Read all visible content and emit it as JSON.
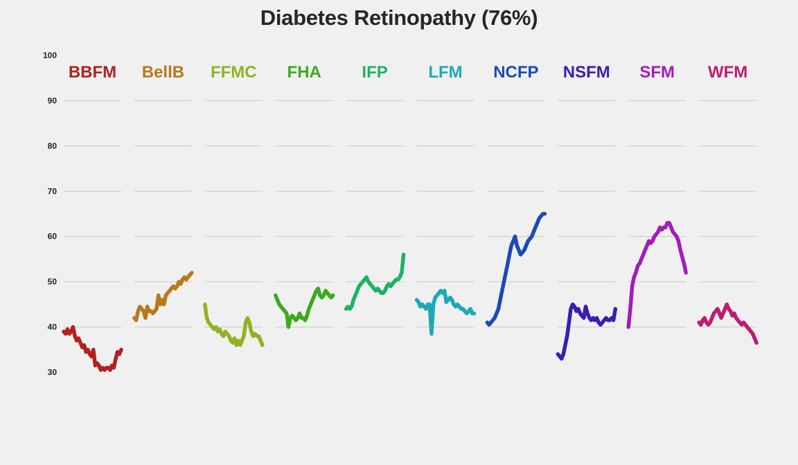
{
  "chart_data": {
    "type": "line",
    "title": "Diabetes Retinopathy (76%)",
    "xlabel": "",
    "ylabel": "",
    "ylim": [
      30,
      100
    ],
    "y_ticks": [
      30,
      40,
      50,
      60,
      70,
      80,
      90,
      100
    ],
    "grid": true,
    "layout": "small-multiples",
    "series": [
      {
        "name": "BBFM",
        "color": "#b3201e",
        "values": [
          39,
          38.5,
          39.5,
          38.5,
          39,
          40,
          38,
          37,
          37.5,
          36.5,
          35.5,
          36,
          34.5,
          35,
          34,
          33.5,
          35,
          31.5,
          32,
          31.5,
          30.5,
          31,
          30.5,
          31,
          31,
          30.5,
          31.5,
          31,
          33,
          34.5,
          34,
          35
        ]
      },
      {
        "name": "BellB",
        "color": "#b8791d",
        "values": [
          42,
          41.5,
          43.5,
          44.5,
          44,
          43.5,
          42,
          44.5,
          43.5,
          43.5,
          43,
          43.5,
          44,
          47,
          45,
          46,
          45,
          47,
          47.5,
          48,
          48.5,
          49,
          48.5,
          49,
          50,
          49.5,
          50.5,
          51,
          50.5,
          51,
          51.5,
          52
        ]
      },
      {
        "name": "FFMC",
        "color": "#91b323",
        "values": [
          45,
          42,
          41,
          40.5,
          40,
          39.5,
          40,
          39,
          39.5,
          38.5,
          38,
          39,
          38.5,
          38,
          37,
          36.5,
          37.5,
          36,
          37,
          36,
          37,
          38,
          41,
          42,
          41,
          39,
          38,
          38.5,
          38,
          38,
          37,
          36
        ]
      },
      {
        "name": "FHA",
        "color": "#3aaa1f",
        "values": [
          47,
          46,
          45,
          44.5,
          44,
          43.5,
          43,
          40,
          42,
          42.5,
          42,
          41.5,
          42,
          43,
          42,
          42,
          41.5,
          42.5,
          44,
          45,
          46,
          47,
          48,
          48.5,
          47,
          46.5,
          47,
          48,
          47.5,
          47,
          46.5,
          47
        ]
      },
      {
        "name": "IFP",
        "color": "#1db362",
        "values": [
          44,
          44.5,
          44,
          44.5,
          46,
          47,
          48,
          49,
          49.5,
          50,
          50.5,
          51,
          50,
          49.5,
          49,
          48.5,
          48,
          48.5,
          48,
          47.5,
          47.5,
          48,
          49,
          49.5,
          49,
          49.5,
          50,
          50.5,
          50.5,
          51,
          52,
          56
        ]
      },
      {
        "name": "LFM",
        "color": "#1ba9b8",
        "values": [
          46,
          45.5,
          44.5,
          45,
          44.5,
          44,
          45,
          45,
          38.5,
          45,
          46.5,
          47,
          47.5,
          48,
          47.5,
          48,
          45.5,
          46,
          46.5,
          46,
          45,
          44.5,
          45,
          44.5,
          44,
          44,
          43.5,
          43,
          43.5,
          44,
          43,
          43
        ]
      },
      {
        "name": "NCFP",
        "color": "#1d4ab4",
        "values": [
          41,
          40.5,
          41,
          41.5,
          42,
          43,
          44,
          46,
          48,
          50,
          52,
          54,
          56,
          58,
          59,
          60,
          58,
          57,
          56,
          56.5,
          57,
          58,
          59,
          59.5,
          60,
          61,
          62,
          63,
          64,
          64.5,
          65,
          65
        ]
      },
      {
        "name": "NSFM",
        "color": "#3a1db3",
        "values": [
          34,
          33.5,
          33,
          34,
          36,
          38,
          41,
          44,
          45,
          44.5,
          43.5,
          44,
          43,
          42.5,
          42,
          44.5,
          43,
          42,
          41.5,
          42,
          41.5,
          42,
          41,
          40.5,
          41,
          41.5,
          42,
          41.5,
          41.5,
          42,
          41.5,
          44
        ]
      },
      {
        "name": "SFM",
        "color": "#a11db8",
        "values": [
          40,
          44,
          49,
          51,
          52,
          53.5,
          54,
          55,
          56,
          57,
          58,
          59,
          58.5,
          59,
          60,
          60.5,
          61,
          62,
          61.5,
          62,
          62,
          63,
          63,
          62,
          61,
          60.5,
          60,
          59,
          57,
          55.5,
          54,
          52
        ]
      },
      {
        "name": "WFM",
        "color": "#bd1d6f",
        "values": [
          41,
          40.5,
          41.5,
          42,
          41,
          40.5,
          41,
          42,
          43,
          43.5,
          44,
          43,
          42,
          43,
          44,
          45,
          44,
          43.5,
          42.5,
          43,
          42,
          41.5,
          41,
          40.5,
          41,
          40.5,
          40,
          39.5,
          39,
          38.5,
          37.5,
          36.5
        ]
      }
    ]
  }
}
